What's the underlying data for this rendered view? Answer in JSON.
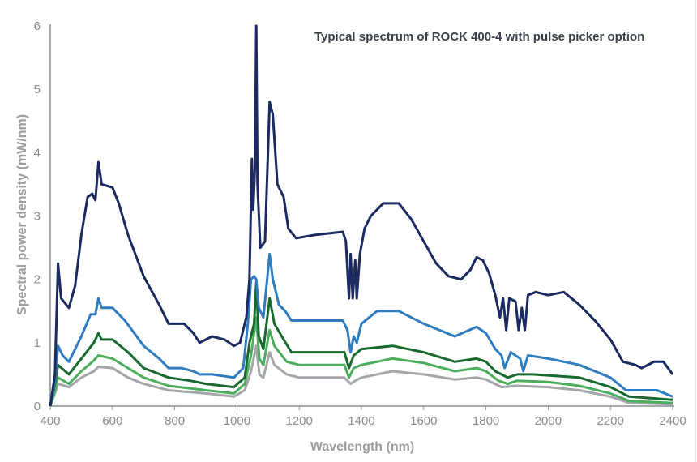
{
  "chart_data": {
    "type": "line",
    "title": "Typical spectrum of ROCK 400-4 with pulse picker option",
    "xlabel": "Wavelength (nm)",
    "ylabel": "Spectral power density (mW/nm)",
    "xlim": [
      400,
      2400
    ],
    "ylim": [
      0,
      6
    ],
    "xticks": [
      400,
      600,
      800,
      1000,
      1200,
      1400,
      1600,
      1800,
      2000,
      2200,
      2400
    ],
    "yticks": [
      0,
      1,
      2,
      3,
      4,
      5,
      6
    ],
    "grid": false,
    "legend": "none",
    "series": [
      {
        "name": "gray",
        "color": "#a3a6aa",
        "points": [
          [
            400,
            0
          ],
          [
            415,
            0.2
          ],
          [
            425,
            0.35
          ],
          [
            460,
            0.3
          ],
          [
            500,
            0.45
          ],
          [
            540,
            0.55
          ],
          [
            555,
            0.62
          ],
          [
            600,
            0.6
          ],
          [
            650,
            0.45
          ],
          [
            700,
            0.35
          ],
          [
            780,
            0.25
          ],
          [
            900,
            0.2
          ],
          [
            990,
            0.15
          ],
          [
            1025,
            0.25
          ],
          [
            1045,
            0.55
          ],
          [
            1062,
            0.95
          ],
          [
            1072,
            0.5
          ],
          [
            1085,
            0.45
          ],
          [
            1105,
            0.85
          ],
          [
            1120,
            0.65
          ],
          [
            1160,
            0.5
          ],
          [
            1200,
            0.45
          ],
          [
            1345,
            0.45
          ],
          [
            1365,
            0.35
          ],
          [
            1380,
            0.4
          ],
          [
            1400,
            0.45
          ],
          [
            1500,
            0.55
          ],
          [
            1600,
            0.5
          ],
          [
            1700,
            0.42
          ],
          [
            1770,
            0.45
          ],
          [
            1800,
            0.42
          ],
          [
            1850,
            0.3
          ],
          [
            1900,
            0.32
          ],
          [
            2000,
            0.3
          ],
          [
            2100,
            0.25
          ],
          [
            2200,
            0.15
          ],
          [
            2260,
            0.05
          ],
          [
            2400,
            0.03
          ]
        ]
      },
      {
        "name": "light-green",
        "color": "#4cae5c",
        "points": [
          [
            400,
            0
          ],
          [
            415,
            0.25
          ],
          [
            425,
            0.45
          ],
          [
            460,
            0.35
          ],
          [
            500,
            0.55
          ],
          [
            540,
            0.72
          ],
          [
            555,
            0.8
          ],
          [
            600,
            0.75
          ],
          [
            650,
            0.6
          ],
          [
            700,
            0.45
          ],
          [
            780,
            0.32
          ],
          [
            900,
            0.25
          ],
          [
            990,
            0.2
          ],
          [
            1025,
            0.35
          ],
          [
            1045,
            0.8
          ],
          [
            1062,
            1.4
          ],
          [
            1072,
            0.75
          ],
          [
            1085,
            0.65
          ],
          [
            1105,
            1.2
          ],
          [
            1120,
            0.95
          ],
          [
            1160,
            0.7
          ],
          [
            1200,
            0.65
          ],
          [
            1345,
            0.65
          ],
          [
            1360,
            0.45
          ],
          [
            1375,
            0.6
          ],
          [
            1400,
            0.65
          ],
          [
            1500,
            0.75
          ],
          [
            1600,
            0.68
          ],
          [
            1700,
            0.55
          ],
          [
            1770,
            0.6
          ],
          [
            1800,
            0.55
          ],
          [
            1840,
            0.4
          ],
          [
            1870,
            0.35
          ],
          [
            1900,
            0.4
          ],
          [
            2000,
            0.38
          ],
          [
            2100,
            0.32
          ],
          [
            2200,
            0.2
          ],
          [
            2260,
            0.08
          ],
          [
            2400,
            0.05
          ]
        ]
      },
      {
        "name": "dark-green",
        "color": "#17692f",
        "points": [
          [
            400,
            0
          ],
          [
            415,
            0.35
          ],
          [
            425,
            0.65
          ],
          [
            460,
            0.5
          ],
          [
            500,
            0.75
          ],
          [
            540,
            1.0
          ],
          [
            555,
            1.15
          ],
          [
            565,
            1.05
          ],
          [
            600,
            1.05
          ],
          [
            650,
            0.85
          ],
          [
            700,
            0.6
          ],
          [
            780,
            0.45
          ],
          [
            850,
            0.4
          ],
          [
            900,
            0.35
          ],
          [
            990,
            0.3
          ],
          [
            1025,
            0.45
          ],
          [
            1040,
            1.0
          ],
          [
            1055,
            1.3
          ],
          [
            1062,
            1.95
          ],
          [
            1070,
            1.1
          ],
          [
            1085,
            0.9
          ],
          [
            1105,
            1.7
          ],
          [
            1120,
            1.3
          ],
          [
            1150,
            1.05
          ],
          [
            1175,
            0.85
          ],
          [
            1250,
            0.85
          ],
          [
            1345,
            0.85
          ],
          [
            1360,
            0.6
          ],
          [
            1375,
            0.8
          ],
          [
            1400,
            0.9
          ],
          [
            1500,
            0.95
          ],
          [
            1600,
            0.85
          ],
          [
            1700,
            0.7
          ],
          [
            1770,
            0.75
          ],
          [
            1800,
            0.7
          ],
          [
            1830,
            0.55
          ],
          [
            1870,
            0.45
          ],
          [
            1900,
            0.5
          ],
          [
            1950,
            0.5
          ],
          [
            2100,
            0.45
          ],
          [
            2200,
            0.3
          ],
          [
            2260,
            0.15
          ],
          [
            2400,
            0.1
          ]
        ]
      },
      {
        "name": "blue",
        "color": "#2f7cc0",
        "points": [
          [
            400,
            0
          ],
          [
            415,
            0.4
          ],
          [
            425,
            0.95
          ],
          [
            440,
            0.8
          ],
          [
            460,
            0.7
          ],
          [
            500,
            1.1
          ],
          [
            530,
            1.45
          ],
          [
            545,
            1.45
          ],
          [
            555,
            1.7
          ],
          [
            565,
            1.55
          ],
          [
            600,
            1.55
          ],
          [
            640,
            1.35
          ],
          [
            700,
            0.95
          ],
          [
            750,
            0.75
          ],
          [
            780,
            0.6
          ],
          [
            820,
            0.6
          ],
          [
            860,
            0.55
          ],
          [
            880,
            0.5
          ],
          [
            920,
            0.5
          ],
          [
            990,
            0.45
          ],
          [
            1020,
            0.6
          ],
          [
            1035,
            1.3
          ],
          [
            1045,
            2.0
          ],
          [
            1055,
            2.05
          ],
          [
            1062,
            2.0
          ],
          [
            1070,
            1.55
          ],
          [
            1085,
            1.4
          ],
          [
            1105,
            2.4
          ],
          [
            1115,
            2.0
          ],
          [
            1135,
            1.6
          ],
          [
            1155,
            1.5
          ],
          [
            1175,
            1.35
          ],
          [
            1200,
            1.35
          ],
          [
            1340,
            1.35
          ],
          [
            1355,
            1.2
          ],
          [
            1365,
            0.85
          ],
          [
            1375,
            1.1
          ],
          [
            1385,
            1.0
          ],
          [
            1400,
            1.3
          ],
          [
            1450,
            1.5
          ],
          [
            1520,
            1.5
          ],
          [
            1600,
            1.3
          ],
          [
            1700,
            1.1
          ],
          [
            1770,
            1.25
          ],
          [
            1800,
            1.15
          ],
          [
            1830,
            0.9
          ],
          [
            1850,
            0.8
          ],
          [
            1860,
            0.6
          ],
          [
            1880,
            0.85
          ],
          [
            1910,
            0.75
          ],
          [
            1920,
            0.55
          ],
          [
            1935,
            0.8
          ],
          [
            2000,
            0.75
          ],
          [
            2100,
            0.65
          ],
          [
            2200,
            0.45
          ],
          [
            2250,
            0.25
          ],
          [
            2300,
            0.25
          ],
          [
            2350,
            0.25
          ],
          [
            2400,
            0.15
          ]
        ]
      },
      {
        "name": "navy",
        "color": "#1b2a60",
        "points": [
          [
            400,
            0
          ],
          [
            415,
            0.5
          ],
          [
            425,
            2.25
          ],
          [
            435,
            1.7
          ],
          [
            460,
            1.55
          ],
          [
            480,
            1.9
          ],
          [
            500,
            2.7
          ],
          [
            520,
            3.3
          ],
          [
            535,
            3.35
          ],
          [
            545,
            3.25
          ],
          [
            555,
            3.85
          ],
          [
            565,
            3.5
          ],
          [
            600,
            3.45
          ],
          [
            620,
            3.2
          ],
          [
            650,
            2.7
          ],
          [
            700,
            2.05
          ],
          [
            750,
            1.6
          ],
          [
            780,
            1.3
          ],
          [
            800,
            1.3
          ],
          [
            830,
            1.3
          ],
          [
            860,
            1.15
          ],
          [
            880,
            1.0
          ],
          [
            900,
            1.05
          ],
          [
            920,
            1.1
          ],
          [
            960,
            1.05
          ],
          [
            990,
            0.95
          ],
          [
            1010,
            1.0
          ],
          [
            1030,
            1.4
          ],
          [
            1040,
            2.0
          ],
          [
            1048,
            3.9
          ],
          [
            1052,
            3.1
          ],
          [
            1058,
            3.8
          ],
          [
            1062,
            6.0
          ],
          [
            1066,
            3.5
          ],
          [
            1075,
            2.5
          ],
          [
            1090,
            2.6
          ],
          [
            1105,
            4.8
          ],
          [
            1115,
            4.6
          ],
          [
            1130,
            3.5
          ],
          [
            1150,
            3.3
          ],
          [
            1165,
            2.8
          ],
          [
            1190,
            2.65
          ],
          [
            1250,
            2.7
          ],
          [
            1340,
            2.75
          ],
          [
            1350,
            2.6
          ],
          [
            1360,
            1.7
          ],
          [
            1365,
            2.4
          ],
          [
            1372,
            1.7
          ],
          [
            1380,
            2.3
          ],
          [
            1385,
            1.7
          ],
          [
            1395,
            2.4
          ],
          [
            1410,
            2.8
          ],
          [
            1430,
            3.0
          ],
          [
            1470,
            3.2
          ],
          [
            1520,
            3.2
          ],
          [
            1560,
            2.95
          ],
          [
            1600,
            2.6
          ],
          [
            1640,
            2.25
          ],
          [
            1680,
            2.05
          ],
          [
            1720,
            2.0
          ],
          [
            1750,
            2.15
          ],
          [
            1770,
            2.35
          ],
          [
            1790,
            2.3
          ],
          [
            1810,
            2.1
          ],
          [
            1830,
            1.75
          ],
          [
            1845,
            1.4
          ],
          [
            1855,
            1.7
          ],
          [
            1865,
            1.2
          ],
          [
            1875,
            1.7
          ],
          [
            1895,
            1.65
          ],
          [
            1905,
            1.2
          ],
          [
            1915,
            1.55
          ],
          [
            1925,
            1.2
          ],
          [
            1935,
            1.75
          ],
          [
            1960,
            1.8
          ],
          [
            2000,
            1.75
          ],
          [
            2050,
            1.8
          ],
          [
            2100,
            1.6
          ],
          [
            2150,
            1.35
          ],
          [
            2200,
            1.05
          ],
          [
            2240,
            0.7
          ],
          [
            2280,
            0.65
          ],
          [
            2300,
            0.6
          ],
          [
            2340,
            0.7
          ],
          [
            2370,
            0.7
          ],
          [
            2400,
            0.5
          ]
        ]
      }
    ]
  }
}
